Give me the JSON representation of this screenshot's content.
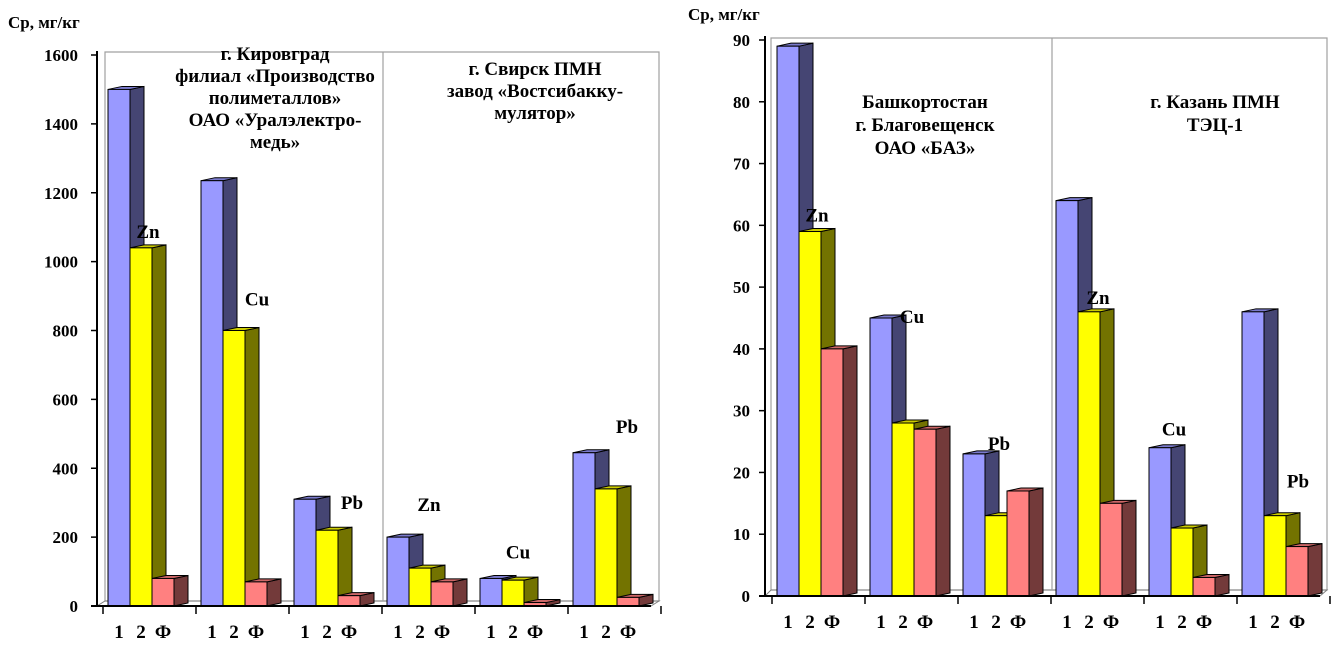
{
  "chart_data": [
    {
      "type": "bar",
      "ylabel": "Ср, мг/кг",
      "ylim": [
        0,
        1600
      ],
      "yticks": [
        0,
        200,
        400,
        600,
        800,
        1000,
        1200,
        1400,
        1600
      ],
      "categories": [
        "1",
        "2",
        "Ф"
      ],
      "series": [
        {
          "name": "1"
        },
        {
          "name": "2"
        },
        {
          "name": "Ф"
        }
      ],
      "colors": {
        "s1": "#9999ff",
        "s2": "#ffff00",
        "sF": "#ff8080"
      },
      "groups": [
        {
          "site": 0,
          "element": "Zn",
          "values": [
            1500,
            1040,
            80
          ]
        },
        {
          "site": 0,
          "element": "Cu",
          "values": [
            1235,
            800,
            70
          ]
        },
        {
          "site": 0,
          "element": "Pb",
          "values": [
            310,
            220,
            30
          ]
        },
        {
          "site": 1,
          "element": "Zn",
          "values": [
            200,
            110,
            70
          ]
        },
        {
          "site": 1,
          "element": "Cu",
          "values": [
            80,
            75,
            10
          ]
        },
        {
          "site": 1,
          "element": "Pb",
          "values": [
            445,
            340,
            25
          ]
        }
      ],
      "sites": [
        {
          "lines": [
            "г. Кировград",
            "филиал «Производство",
            "полиметаллов»",
            "ОАО «Уралэлектро-",
            "медь»"
          ]
        },
        {
          "lines": [
            "г. Свирск ПМН",
            "завод «Востсибакку-",
            "мулятор»"
          ]
        }
      ]
    },
    {
      "type": "bar",
      "ylabel": "Ср, мг/кг",
      "ylim": [
        0,
        90
      ],
      "yticks": [
        0,
        10,
        20,
        30,
        40,
        50,
        60,
        70,
        80,
        90
      ],
      "categories": [
        "1",
        "2",
        "Ф"
      ],
      "series": [
        {
          "name": "1"
        },
        {
          "name": "2"
        },
        {
          "name": "Ф"
        }
      ],
      "colors": {
        "s1": "#9999ff",
        "s2": "#ffff00",
        "sF": "#ff8080"
      },
      "groups": [
        {
          "site": 0,
          "element": "Zn",
          "values": [
            89,
            59,
            40
          ]
        },
        {
          "site": 0,
          "element": "Cu",
          "values": [
            45,
            28,
            27
          ]
        },
        {
          "site": 0,
          "element": "Pb",
          "values": [
            23,
            13,
            17
          ]
        },
        {
          "site": 1,
          "element": "Zn",
          "values": [
            64,
            46,
            15
          ]
        },
        {
          "site": 1,
          "element": "Cu",
          "values": [
            24,
            11,
            3
          ]
        },
        {
          "site": 1,
          "element": "Pb",
          "values": [
            46,
            13,
            8
          ]
        }
      ],
      "sites": [
        {
          "lines": [
            "Башкортостан",
            "г. Благовещенск",
            "ОАО «БАЗ»"
          ]
        },
        {
          "lines": [
            "г. Казань ПМН",
            "ТЭЦ-1"
          ]
        }
      ]
    }
  ]
}
